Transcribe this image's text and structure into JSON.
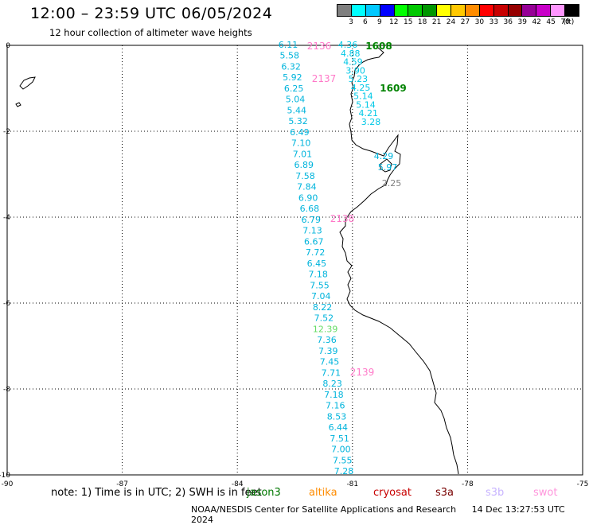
{
  "header": {
    "title": "12:00 – 23:59 UTC 06/05/2024",
    "subtitle": "12 hour collection of altimeter wave heights"
  },
  "legend": {
    "unit": "(ft)",
    "colors": [
      "#7f7f7f",
      "#00ffff",
      "#00c8ff",
      "#0000ff",
      "#00ff00",
      "#00c800",
      "#009600",
      "#ffff00",
      "#ffc800",
      "#ff8c00",
      "#ff0000",
      "#c80000",
      "#960000",
      "#960096",
      "#c800c8",
      "#ff96ff",
      "#000000"
    ],
    "labels": [
      "3",
      "6",
      "9",
      "12",
      "15",
      "18",
      "21",
      "24",
      "27",
      "30",
      "33",
      "36",
      "39",
      "42",
      "45",
      "70"
    ]
  },
  "map": {
    "lon_range": [
      -90,
      -75
    ],
    "lat_range": [
      -10,
      0
    ],
    "x_ticks": [
      "-90",
      "-87",
      "-84",
      "-81",
      "-78",
      "-75"
    ],
    "y_ticks": [
      "0",
      "-2",
      "-4",
      "-6",
      "-8",
      "-10"
    ],
    "grid": "dotted",
    "track_a": {
      "color": "#00b4dc",
      "values": [
        "6.11",
        "5.58",
        "6.32",
        "5.92",
        "6.25",
        "5.04",
        "5.44",
        "5.32",
        "6.49",
        "7.10",
        "7.01",
        "6.89",
        "7.58",
        "7.84",
        "6.90",
        "6.68",
        "6.79",
        "7.13",
        "6.67",
        "7.72",
        "6.45",
        "7.18",
        "7.55",
        "7.04",
        "8.22",
        "7.52",
        "12.39",
        "7.36",
        "7.39",
        "7.45",
        "7.71",
        "8.23",
        "7.18",
        "7.16",
        "8.53",
        "6.44",
        "7.51",
        "7.00",
        "7.55",
        "7.28"
      ],
      "highlight": {
        "index": 26,
        "color": "#64dc64"
      }
    },
    "track_b": {
      "color": "#00c8e6",
      "values": [
        "4.36",
        "4.88",
        "4.59",
        "3.90",
        "5.23",
        "4.25",
        "5.14",
        "5.14",
        "4.21",
        "3.28"
      ]
    },
    "gulf_labels": [
      "4.29",
      "5.97",
      "2.25"
    ],
    "pass_labels": [
      {
        "text": "2136",
        "color": "#ff78c8"
      },
      {
        "text": "2137",
        "color": "#ff78c8"
      },
      {
        "text": "2138",
        "color": "#ff78c8"
      },
      {
        "text": "2139",
        "color": "#ff78c8"
      },
      {
        "text": "1608",
        "color": "#008200"
      },
      {
        "text": "1609",
        "color": "#008200"
      }
    ]
  },
  "note": "note: 1) Time is in UTC; 2) SWH is in feet",
  "satellites": [
    {
      "name": "jason3",
      "color": "#007800"
    },
    {
      "name": "altika",
      "color": "#ff8c00"
    },
    {
      "name": "cryosat",
      "color": "#c80000"
    },
    {
      "name": "s3a",
      "color": "#780000"
    },
    {
      "name": "s3b",
      "color": "#c8b4ff"
    },
    {
      "name": "swot",
      "color": "#ff96dc"
    }
  ],
  "footer": {
    "credit": "NOAA/NESDIS Center for Satellite Applications and Research",
    "timestamp": "14 Dec 13:27:53 UTC 2024"
  }
}
